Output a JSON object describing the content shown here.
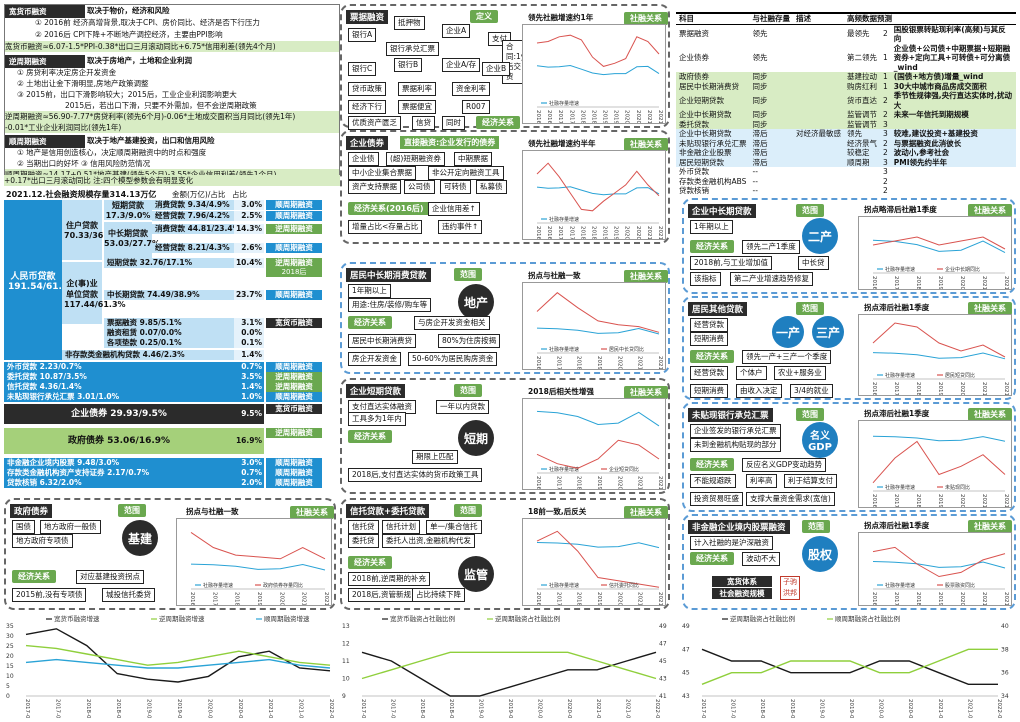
{
  "colors": {
    "dark": "#2b2b2b",
    "green": "#6aa84f",
    "lightgreen": "#a5d07a",
    "blue": "#1f8fd0",
    "lightblue": "#bfe0f4",
    "line1": "#1a1a1a",
    "line2": "#8fcf3c",
    "line3": "#2aa3d6",
    "line4": "#d9534f"
  },
  "tl": {
    "s1_title": "宽货币融资",
    "s1_sub": "取决于物价，经济和风险",
    "s1_l1": "① 2016前     经济高增背景,取决于CPI、房价同比、经济是否下行压力",
    "s1_l2": "② 2016后     CPI下降+不断地产调控经济，主要由PPI影响",
    "s1_l3": "宽货币融资≈6.07-1.5*PPI-0.38*出口三月滚动同比+6.75*信用利差(领先4个月)",
    "s2_title": "逆周期融资",
    "s2_sub": "取决于房地产，土地和企业利润",
    "s2_l1": "① 房贷利率决定房企开发资金",
    "s2_l2": "② 土地出让金下滑明显,房地产政策调整",
    "s2_l3": "③ 2015前，出口下滑影响较大；2015后，工业企业利润影响更大",
    "s2_l4": "2015后，若出口下滑，只要不外需加，但不会逆周期政策",
    "s2_l5": "逆周期融资≈56.90-7.77*房贷利率(领先6个月)-0.06*土地成交面积当月同比(领先1年)",
    "s2_l6": "-0.01*工业企业利润同比(领先1年)",
    "s3_title": "顺周期融资",
    "s3_sub": "取决于地产基建投资，出口和信用风险",
    "s3_l1": "① 地产是信用创造核心，决定顺周期融资中的时点和强度",
    "s3_l2": "② 当期出口的好坏     ③ 信用风险防范情况",
    "s3_l3": "顺周期融资≈14.17+0.51*地产基建(领先5个月)-3.55*企业信用利差(领先1个月)",
    "s3_l4": "+0.17*出口三月滚动同比     注:四个模型参数会有明显变化"
  },
  "tree": {
    "header": "2021.12.社会融资规模存量314.13万亿",
    "amt_label": "金额(万亿)/占比",
    "pct_label": "占比",
    "root_label": "人民币贷款",
    "root_val": "191.54/61.0%",
    "house_label": "住户贷款",
    "house_val": "70.33/36.7%",
    "house_short": "短期贷款",
    "house_short_val": "17.3/9.0%",
    "house_mid": "中长期贷款",
    "house_mid_val": "53.03/27.7%",
    "consume1": "消费贷款 9.34/4.9%",
    "consume1_pct": "3.0%",
    "consume1_tag": "顺周期融资",
    "biz1": "经营贷款 7.96/4.2%",
    "biz1_pct": "2.5%",
    "biz1_tag": "顺周期融资",
    "consume2": "消费贷款 44.81/23.4%",
    "consume2_pct": "14.3%",
    "consume2_tag": "逆周期融资",
    "biz2": "经营贷款 8.21/4.3%",
    "biz2_pct": "2.6%",
    "biz2_tag": "顺周期融资",
    "corp_label": "企(事)业单位贷款",
    "corp_val": "117.44/61.3%",
    "corp_short": "短期贷款 32.76/17.1%",
    "corp_short_pct": "10.4%",
    "corp_short_tag": "逆周期融资",
    "corp_short_tag2": "2018后",
    "corp_mid": "中长期贷款 74.49/38.9%",
    "corp_mid_pct": "23.7%",
    "corp_mid_tag": "顺周期融资",
    "bill": "票据融资 9.85/5.1%",
    "bill_pct": "3.1%",
    "bill_tag": "宽货币融资",
    "lease": "融资租赁 0.07/0.0%",
    "lease_pct": "0.0%",
    "adv": "各项垫款 0.25/0.1%",
    "adv_pct": "0.1%",
    "nonbank": "非存款类金融机构贷款 4.46/2.3%",
    "nonbank_pct": "1.4%",
    "fx": "外币贷款 2.23/0.7%",
    "fx_pct": "0.7%",
    "fx_tag": "顺周期融资",
    "entrust": "委托贷款 10.87/3.5%",
    "entrust_pct": "3.5%",
    "entrust_tag": "逆周期融资",
    "trust": "信托贷款 4.36/1.4%",
    "trust_pct": "1.4%",
    "trust_tag": "逆周期融资",
    "trust_tag2": "2018后",
    "undisc": "未贴现银行承兑汇票 3.01/1.0%",
    "undisc_pct": "1.0%",
    "undisc_tag": "顺周期融资",
    "bond": "企业债券 29.93/9.5%",
    "bond_pct": "9.5%",
    "bond_tag": "宽货币融资",
    "gov": "政府债券 53.06/16.9%",
    "gov_pct": "16.9%",
    "gov_tag": "逆周期融资",
    "equity": "非金融企业境内股票 9.48/3.0%",
    "equity_pct": "3.0%",
    "equity_tag": "顺周期融资",
    "abs": "存款类金融机构资产支持证券 2.17/0.7%",
    "abs_pct": "0.7%",
    "abs_tag": "顺周期融资",
    "writeoff": "贷款核销 6.32/2.0%",
    "writeoff_pct": "2.0%",
    "writeoff_tag": "顺周期融资"
  },
  "p_bill": {
    "title": "票据融资",
    "tag": "定义",
    "b1": "银行A",
    "b2": "抵押物",
    "b3": "企业A",
    "b4": "银行承兑汇票",
    "b5": "企业A/存",
    "b6": "支付",
    "b7": "合同:1y后交货",
    "b8": "银行B",
    "b9": "银行B",
    "b10": "银行C",
    "b11": "企业B",
    "b12": "贷币政策",
    "b13": "票据利率",
    "b14": "资金利率",
    "b15": "经济下行",
    "b16": "票据便宜",
    "b17": "R007",
    "b18": "优质资产匮乏",
    "b19": "信贷",
    "b20": "同时",
    "rel": "经济关系",
    "ctitle": "领先社融增速约1年",
    "ctag": "社融关系"
  },
  "p_corpbond": {
    "title": "企业债券",
    "sub": "直接融资:企业发行的债券",
    "r1": "企业债",
    "r2": "(超)短期融资券",
    "r3": "中期票据",
    "r4": "中小企业集合票据",
    "r5": "非公开定向融资工具",
    "r6": "资产支持票据",
    "r7": "公司债",
    "r8": "可转债",
    "r9": "私募债",
    "rel": "经济关系(2016后)",
    "e1": "企业信用差↑",
    "e2": "增量占比<存量占比",
    "e3": "违约事件↑",
    "ctitle": "领先社融增速约半年",
    "ctag": "社融关系"
  },
  "p_house": {
    "title": "居民中长期消费贷款",
    "tag": "范围",
    "circle": "地产",
    "r1": "1年期以上",
    "r2": "用途:住房/装修/购车等",
    "rel": "经济关系",
    "e1": "与房企开发资金相关",
    "e2": "居民中长期消费贷",
    "e3": "80%为住房按揭",
    "e4": "房企开发资金",
    "e5": "50-60%为居民购房资金",
    "ctitle": "拐点与社融一致",
    "ctag": "社融关系"
  },
  "p_short": {
    "title": "企业短期贷款",
    "tag": "范围",
    "circle": "短期",
    "r1": "支付直达实体融资",
    "r2": "工具多为1年内",
    "r3": "一年以内贷款",
    "rel": "经济关系",
    "e1": "期限上匹配",
    "e2": "2018后,支付直达实体的货币政策工具",
    "ctitle": "2018后相关性增强",
    "ctag": "社融关系"
  },
  "p_gov": {
    "title": "政府债券",
    "tag": "范围",
    "circle": "基建",
    "r1": "国债",
    "r2": "地方政府一般债",
    "r3": "地方政府专项债",
    "rel": "经济关系",
    "e1": "对应基建投资拐点",
    "e2": "2015前,没有专项债",
    "e3": "城投信托委贷",
    "ctitle": "拐点与社融一致",
    "ctag": "社融关系"
  },
  "p_trust": {
    "title": "信托贷款+委托贷款",
    "tag": "范围",
    "circle": "监管",
    "r1": "信托贷",
    "r2": "信托计划",
    "r3": "单一/集合信托",
    "r4": "委托贷",
    "r5": "委托人出资,金融机构代发",
    "rel": "经济关系",
    "e1": "2018前,逆周期的补充",
    "e2": "2018后,资管新规",
    "e3": "占比持续下降",
    "ctitle": "18前一致,后反关",
    "ctag": "社融关系"
  },
  "right_table": {
    "headers": [
      "科目",
      "与社融存量",
      "描述",
      "高频数据预测"
    ],
    "rows": [
      [
        "票据融资",
        "领先",
        "",
        "最领先",
        "2",
        "国股银票转贴现利率(高频)与其反向"
      ],
      [
        "企业债券",
        "领先",
        "",
        "第二领先",
        "1",
        "企业债+公司债+中期票据+短期融资券+定向工具+可转债+可分离债_wind"
      ],
      [
        "政府债券",
        "同步",
        "",
        "基建拉动",
        "1",
        "(国债+地方债)增量_wind"
      ],
      [
        "居民中长期消费贷",
        "同步",
        "",
        "购房红利",
        "1",
        "30大中城市商品房成交面积"
      ],
      [
        "企业短期贷款",
        "同步",
        "",
        "货币直达",
        "2",
        "季节性规律强,央行直达实体时,扰动大"
      ],
      [
        "企业中长期贷款",
        "同步",
        "",
        "监管调节",
        "2",
        "未来一年信托到期规模"
      ],
      [
        "委托贷款",
        "同步",
        "",
        "监管调节",
        "3",
        ""
      ],
      [
        "企业中长期贷款",
        "滞后",
        "对经济最敏感",
        "领先",
        "3",
        "较难,建议投资+基建投资"
      ],
      [
        "未贴现银行承兑汇票",
        "滞后",
        "",
        "经济景气",
        "2",
        "与票据融资此消彼长"
      ],
      [
        "非金融企业股票",
        "滞后",
        "",
        "较稳定",
        "2",
        "波动小,参考社会"
      ],
      [
        "居民短期贷款",
        "滞后",
        "",
        "顺周期",
        "3",
        "PMI领先约半年"
      ],
      [
        "外币贷款",
        "--",
        "",
        "",
        "3",
        ""
      ],
      [
        "存款类金融机构ABS",
        "--",
        "",
        "",
        "2",
        ""
      ],
      [
        "贷款核销",
        "--",
        "",
        "",
        "2",
        ""
      ]
    ]
  },
  "p_corpmid": {
    "title": "企业中长期贷款",
    "tag": "范围",
    "circle": "二产",
    "r1": "1年期以上",
    "rel": "经济关系",
    "e1": "领先二产1季度",
    "e2": "2018前,与工业增加值",
    "e3": "中长贷",
    "e4": "该指标",
    "e5": "第二产业增速趋势修复",
    "ctitle": "拐点略滞后社融1季度",
    "ctag": "社融关系"
  },
  "p_resshort": {
    "title": "居民其他贷款",
    "tag": "范围",
    "c1": "一产",
    "c2": "三产",
    "r1": "经营贷款",
    "r2": "短期消费",
    "rel": "经济关系",
    "e1": "领先一产+三产一个季度",
    "e2": "经营贷款",
    "e3": "个体户",
    "e4": "农业+服务业",
    "e5": "短期消费",
    "e6": "由收入决定",
    "e7": "3/4的就业",
    "ctitle": "拐点滞后社融1季度",
    "ctag": "社融关系"
  },
  "p_undisc": {
    "title": "未贴现银行承兑汇票",
    "tag": "范围",
    "circle": "名义GDP",
    "r1": "企业签发的银行承兑汇票",
    "r2": "未到金融机构贴现的部分",
    "rel": "经济关系",
    "e1": "反应名义GDP变动趋势",
    "e2": "不能规避跌",
    "e3": "利率高",
    "e4": "利于结算支付",
    "e5": "投资贸易旺盛",
    "e6": "支撑大量资金需求(宽信)",
    "ctitle": "拐点滞后社融1季度",
    "ctag": "社融关系"
  },
  "p_equity": {
    "title": "非金融企业境内股票融资",
    "tag": "范围",
    "circle": "股权",
    "r1": "计入社融的是沪深融资",
    "r2": "经济关系",
    "r3": "波动不大",
    "ctitle": "拐点滞后社融1季度",
    "ctag": "社融关系"
  },
  "legend_box": {
    "l1": "宽货体系",
    "l2": "社会融资规模",
    "stamp": "子驹 洪邦"
  },
  "chart_data": [
    {
      "type": "line",
      "title": "",
      "x": [
        "2016-01",
        "2016-07",
        "2017-01",
        "2017-07",
        "2018-01",
        "2018-07",
        "2019-01",
        "2019-07",
        "2020-01",
        "2020-07",
        "2021-01",
        "2021-07"
      ],
      "series": [
        {
          "name": "社融存量增速",
          "values": [
            13.2,
            12.8,
            12.9,
            13.3,
            12.1,
            10.9,
            10.4,
            10.7,
            10.7,
            12.9,
            13.0,
            10.7
          ]
        },
        {
          "name": "",
          "values": [
            20.5,
            21.0,
            22.5,
            23.0,
            21.5,
            16.0,
            13.0,
            14.0,
            15.5,
            22.5,
            21.0,
            17.0
          ]
        }
      ],
      "ylim": [
        0,
        25
      ],
      "ref": "bill"
    },
    {
      "type": "line",
      "title": "",
      "x": [
        "2016-01",
        "2016-07",
        "2017-01",
        "2017-07",
        "2018-01",
        "2018-07",
        "2019-01",
        "2019-07",
        "2020-01",
        "2020-07",
        "2021-01",
        "2021-07"
      ],
      "series": [
        {
          "name": "社融存量增速",
          "values": [
            13.2,
            12.8,
            12.9,
            13.3,
            12.1,
            10.9,
            10.4,
            10.7,
            10.7,
            12.9,
            13.0,
            10.7
          ]
        },
        {
          "name": "",
          "values": [
            18.0,
            22.0,
            17.0,
            11.0,
            5.0,
            4.5,
            8.0,
            11.0,
            14.0,
            19.0,
            14.0,
            10.0
          ]
        }
      ],
      "ylim": [
        0,
        25
      ],
      "ref": "corpbond"
    },
    {
      "type": "line",
      "x": [
        "2016-01",
        "2017-01",
        "2018-01",
        "2019-01",
        "2020-01",
        "2021-01",
        "2021-11"
      ],
      "series": [
        {
          "name": "社融存量增速",
          "values": [
            13.2,
            12.9,
            12.1,
            10.4,
            10.7,
            13.0,
            10.1
          ]
        },
        {
          "name": "居民中长贷同比",
          "values": [
            22,
            32,
            24,
            17,
            15,
            14,
            11
          ]
        }
      ],
      "ylim": [
        0,
        35
      ],
      "ref": "house"
    },
    {
      "type": "line",
      "x": [
        "2016-01",
        "2017-01",
        "2018-01",
        "2019-01",
        "2020-01",
        "2021-01",
        "2021-11"
      ],
      "series": [
        {
          "name": "社融存量增速",
          "values": [
            13.2,
            12.9,
            12.1,
            10.4,
            10.7,
            13.0,
            10.1
          ]
        },
        {
          "name": "企业短贷同比",
          "values": [
            4,
            2,
            1,
            3,
            7,
            6,
            3
          ]
        }
      ],
      "ylim": [
        0,
        15
      ],
      "ref": "short"
    },
    {
      "type": "line",
      "x": [
        "2016-01",
        "2017-01",
        "2018-01",
        "2019-01",
        "2020-01",
        "2021-01",
        "2021-11"
      ],
      "series": [
        {
          "name": "社融存量增速",
          "values": [
            13.2,
            12.9,
            12.1,
            10.4,
            10.7,
            13.0,
            10.1
          ]
        },
        {
          "name": "政府债券存量同比",
          "values": [
            30,
            22,
            18,
            17,
            16,
            22,
            16
          ]
        }
      ],
      "ylim": [
        0,
        35
      ],
      "ref": "gov"
    },
    {
      "type": "line",
      "x": [
        "2016-01",
        "2017-01",
        "2018-01",
        "2019-01",
        "2020-01",
        "2021-01",
        "2021-11"
      ],
      "series": [
        {
          "name": "社融存量增速",
          "values": [
            13.2,
            12.9,
            12.1,
            10.4,
            10.7,
            13.0,
            10.1
          ]
        },
        {
          "name": "信托委托同比",
          "values": [
            14,
            20,
            8,
            -8,
            -10,
            -12,
            -14
          ]
        }
      ],
      "ylim": [
        -15,
        25
      ],
      "ref": "trust"
    },
    {
      "type": "line",
      "x": [
        "2016-01",
        "2017-01",
        "2018-01",
        "2019-01",
        "2020-01",
        "2021-01",
        "2021-11"
      ],
      "series": [
        {
          "name": "社融存量增速",
          "values": [
            13.2,
            12.9,
            12.1,
            10.4,
            10.7,
            13.0,
            10.1
          ]
        },
        {
          "name": "企业中长期同比",
          "values": [
            12,
            13,
            14,
            12,
            13,
            14,
            11
          ]
        }
      ],
      "ylim": [
        5,
        18
      ],
      "ref": "corpmid"
    },
    {
      "type": "line",
      "x": [
        "2016-01",
        "2017-01",
        "2018-01",
        "2019-01",
        "2020-01",
        "2021-01",
        "2021-11"
      ],
      "series": [
        {
          "name": "社融存量增速",
          "values": [
            13.2,
            12.9,
            12.1,
            10.4,
            10.7,
            13.0,
            10.1
          ]
        },
        {
          "name": "居民短贷同比",
          "values": [
            18,
            28,
            26,
            18,
            14,
            17,
            11
          ]
        }
      ],
      "ylim": [
        0,
        30
      ],
      "ref": "resshort"
    },
    {
      "type": "line",
      "x": [
        "2016-01",
        "2017-01",
        "2018-01",
        "2019-01",
        "2020-01",
        "2021-01",
        "2021-11"
      ],
      "series": [
        {
          "name": "社融存量增速",
          "values": [
            13.2,
            12.9,
            12.1,
            10.4,
            10.7,
            13.0,
            10.1
          ]
        },
        {
          "name": "未贴现同比",
          "values": [
            -15,
            0,
            10,
            -10,
            -5,
            2,
            -10
          ]
        }
      ],
      "ylim": [
        -20,
        20
      ],
      "ref": "undisc"
    },
    {
      "type": "line",
      "x": [
        "2016-01",
        "2017-01",
        "2018-01",
        "2019-01",
        "2020-01",
        "2021-01",
        "2021-11"
      ],
      "series": [
        {
          "name": "社融存量增速",
          "values": [
            13.2,
            12.9,
            12.1,
            10.4,
            10.7,
            13.0,
            10.1
          ]
        },
        {
          "name": "股票融资同比",
          "values": [
            18,
            20,
            12,
            6,
            8,
            14,
            17
          ]
        }
      ],
      "ylim": [
        0,
        25
      ],
      "ref": "equity"
    },
    {
      "type": "line",
      "x": [
        "2017-01",
        "2017-07",
        "2018-01",
        "2018-07",
        "2019-01",
        "2019-07",
        "2020-01",
        "2020-07",
        "2021-01",
        "2021-07",
        "2022-01"
      ],
      "series": [
        {
          "name": "宽货币融资增速",
          "values": [
            22,
            24,
            18,
            8,
            6,
            5,
            7,
            14,
            16,
            10,
            9
          ]
        },
        {
          "name": "逆周期融资增速",
          "values": [
            18,
            17,
            15,
            13,
            11,
            12,
            14,
            16,
            14,
            12,
            11
          ]
        },
        {
          "name": "顺周期融资增速",
          "values": [
            12,
            13,
            12,
            11,
            10,
            10,
            11,
            12,
            13,
            11,
            10
          ]
        }
      ],
      "ylim": [
        0,
        25
      ],
      "ref": "bottom1"
    },
    {
      "type": "line",
      "x": [
        "2017-01",
        "2017-07",
        "2018-01",
        "2018-07",
        "2019-01",
        "2019-07",
        "2020-01",
        "2020-07",
        "2021-01",
        "2021-07",
        "2022-01"
      ],
      "series": [
        {
          "name": "宽货币融资占社融比例",
          "values": [
            11.5,
            11.0,
            10.0,
            9.0,
            9.0,
            9.5,
            10.0,
            10.5,
            10.5,
            11.0,
            11.5
          ]
        },
        {
          "name": "逆周期融资占社融比例",
          "values": [
            43,
            44,
            45,
            46,
            46,
            46,
            46,
            46,
            45,
            44,
            43
          ]
        }
      ],
      "ylim": [
        9,
        13
      ],
      "y2lim": [
        41,
        49
      ],
      "ref": "bottom2"
    },
    {
      "type": "line",
      "x": [
        "2017-01",
        "2017-07",
        "2018-01",
        "2018-07",
        "2019-01",
        "2019-07",
        "2020-01",
        "2020-07",
        "2021-01",
        "2021-07",
        "2022-01"
      ],
      "series": [
        {
          "name": "逆周期融资占社融比例",
          "values": [
            47,
            46,
            46,
            45,
            45,
            45,
            46,
            46,
            45,
            44,
            44
          ]
        },
        {
          "name": "顺周期融资占社融比例",
          "values": [
            35,
            36,
            36,
            37,
            37,
            37,
            36,
            36,
            37,
            38,
            38
          ]
        }
      ],
      "ylim": [
        43,
        49
      ],
      "y2lim": [
        34,
        40
      ],
      "ref": "bottom3"
    }
  ],
  "axis_ticks": {
    "bottom1_y": [
      "35",
      "30",
      "25",
      "20",
      "15",
      "10",
      "5",
      "0"
    ],
    "bottom2_y": [
      "13",
      "12",
      "11",
      "10",
      "9"
    ],
    "bottom2_y2": [
      "49",
      "47",
      "45",
      "43",
      "41"
    ],
    "bottom3_y": [
      "49",
      "47",
      "45",
      "43"
    ],
    "bottom3_y2": [
      "40",
      "38",
      "36",
      "34"
    ]
  }
}
